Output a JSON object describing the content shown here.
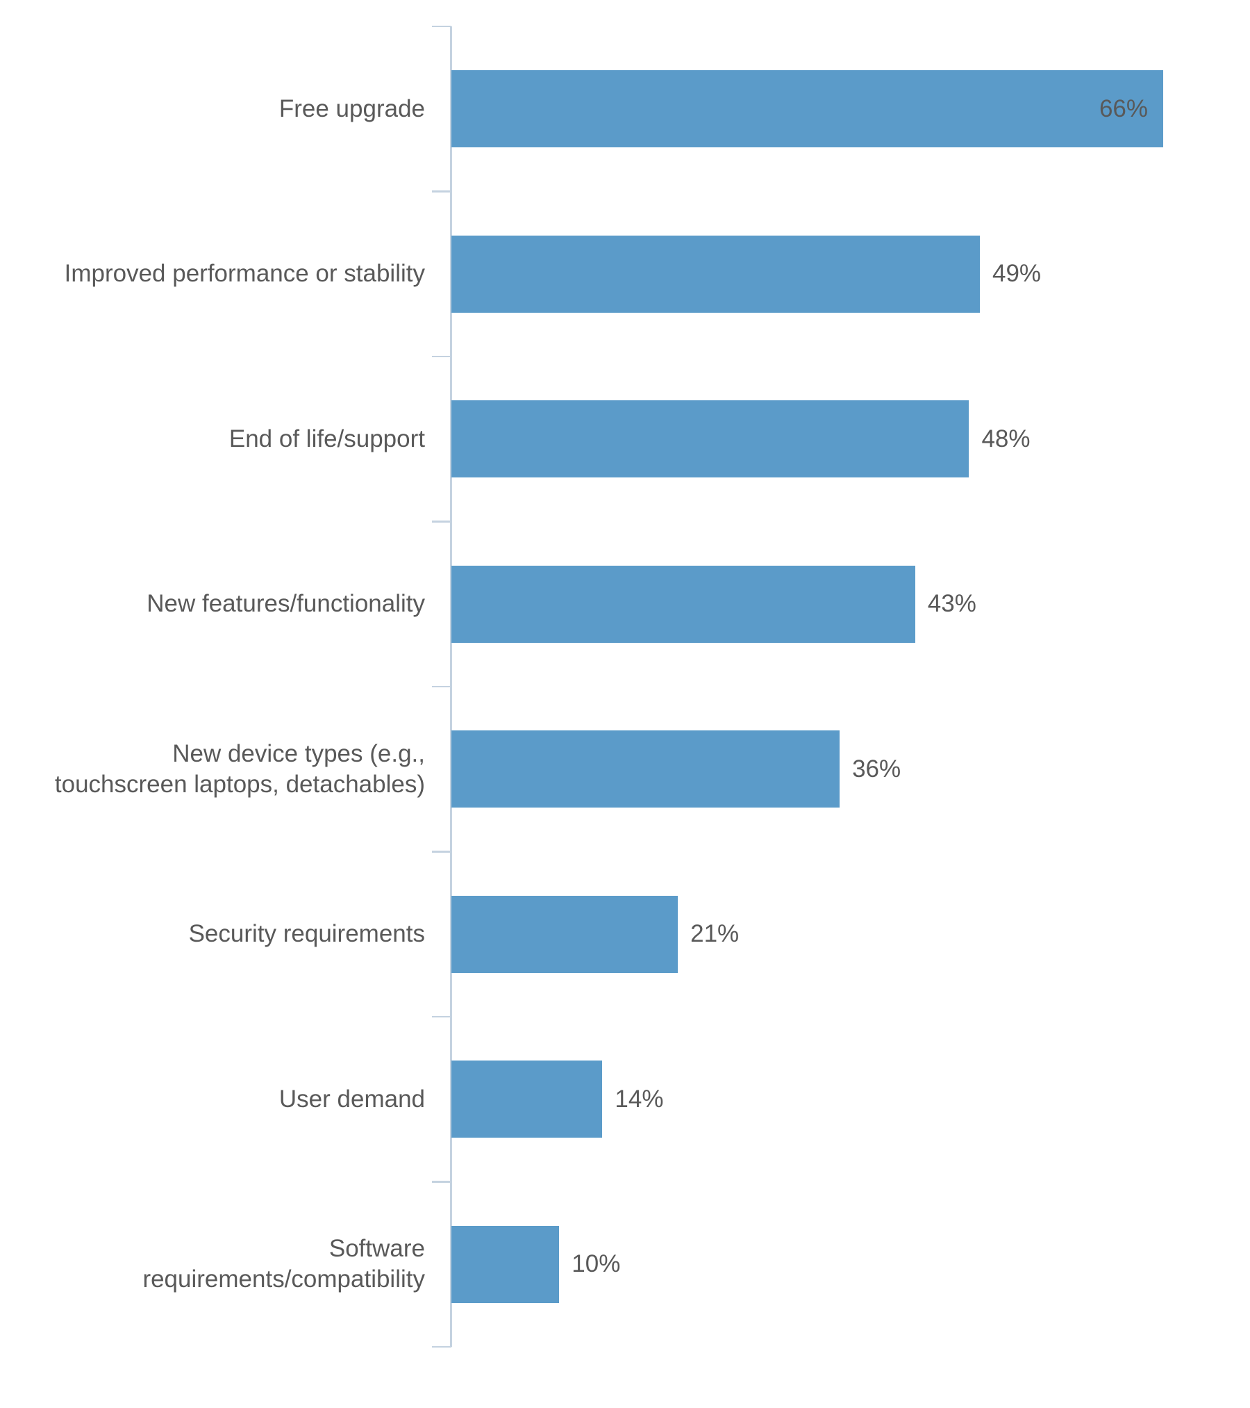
{
  "chart_data": {
    "type": "bar",
    "orientation": "horizontal",
    "title": "",
    "xlabel": "",
    "ylabel": "",
    "grid": false,
    "legend": false,
    "xlim": [
      0,
      70
    ],
    "categories": [
      "Free upgrade",
      "Improved performance or stability",
      "End of life/support",
      "New features/functionality",
      "New device types (e.g.,\ntouchscreen laptops, detachables)",
      "Security requirements",
      "User demand",
      "Software\nrequirements/compatibility"
    ],
    "values": [
      66,
      49,
      48,
      43,
      36,
      21,
      14,
      10
    ],
    "value_labels": [
      "66%",
      "49%",
      "48%",
      "43%",
      "36%",
      "21%",
      "14%",
      "10%"
    ],
    "value_label_inside_bar": [
      true,
      false,
      false,
      false,
      false,
      false,
      false,
      false
    ],
    "colors": {
      "bar": "#5B9BC9",
      "axis": "#C4D2E0",
      "text": "#595959"
    }
  }
}
